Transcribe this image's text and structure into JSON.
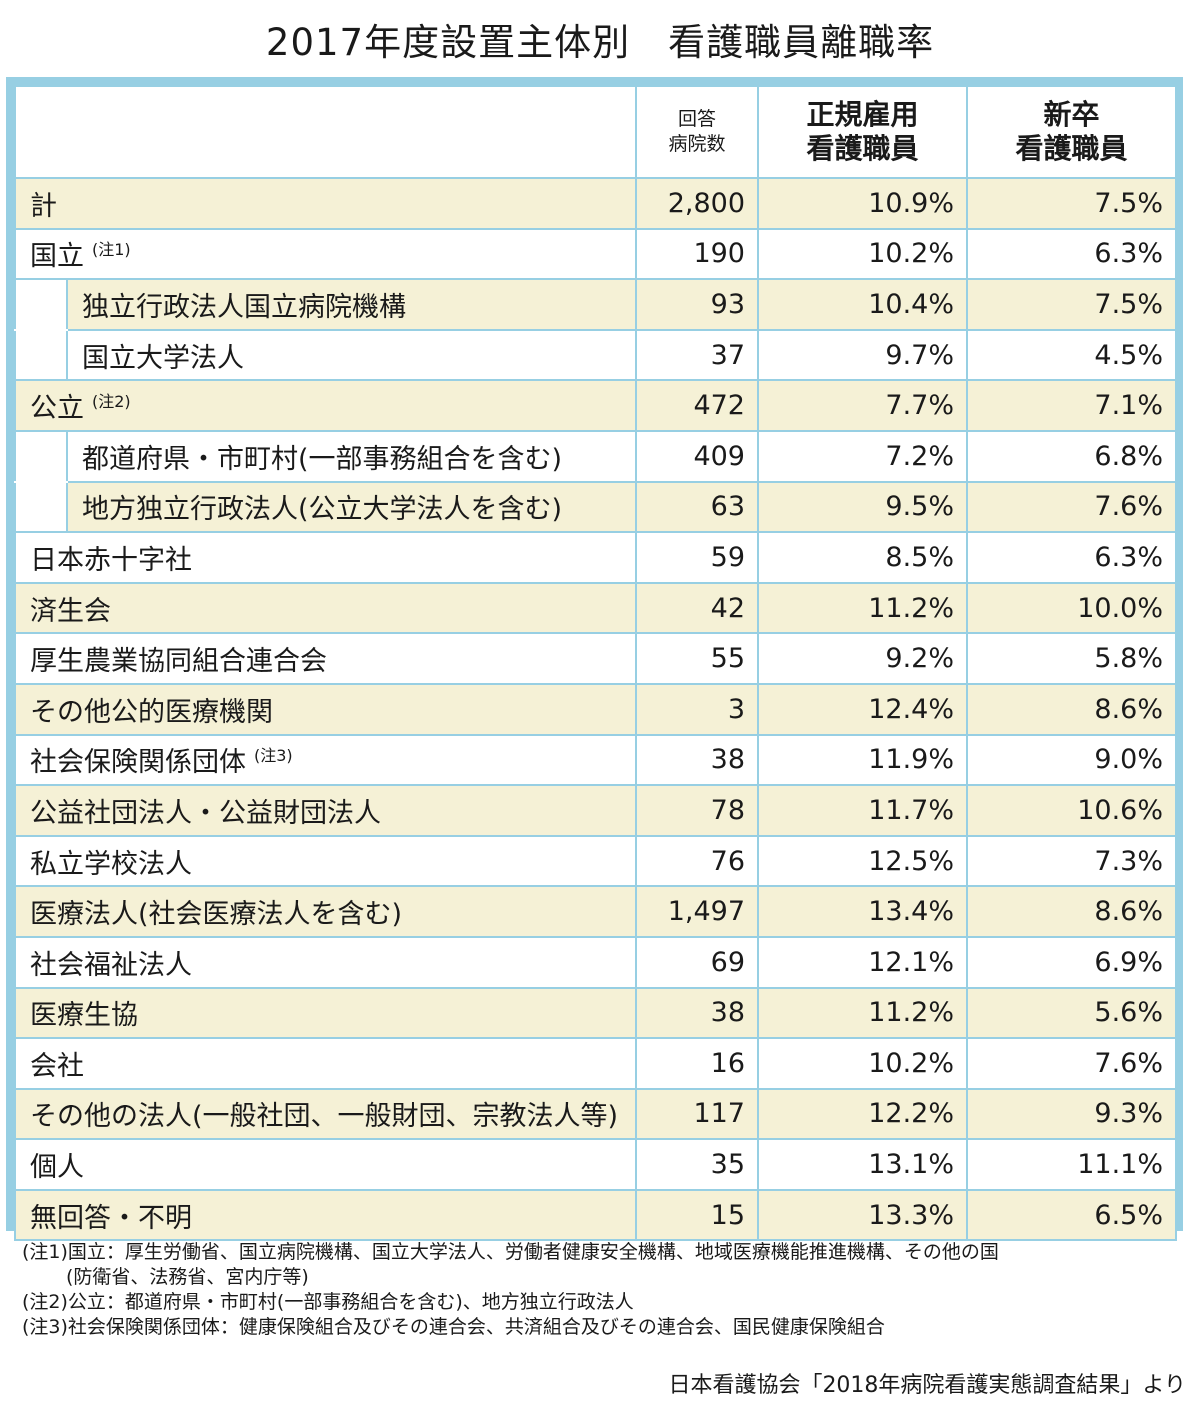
{
  "title": "2017年度設置主体別　看護職員離職率",
  "columns": {
    "count_line1": "回答",
    "count_line2": "病院数",
    "regular_line1": "正規雇用",
    "regular_line2": "看護職員",
    "newgrad_line1": "新卒",
    "newgrad_line2": "看護職員"
  },
  "rows": [
    {
      "label": "計",
      "note": "",
      "count": "2,800",
      "regular": "10.9%",
      "newgrad": "7.5%"
    },
    {
      "label": "国立",
      "note": "(注1)",
      "count": "190",
      "regular": "10.2%",
      "newgrad": "6.3%"
    },
    {
      "label": "独立行政法人国立病院機構",
      "note": "",
      "count": "93",
      "regular": "10.4%",
      "newgrad": "7.5%"
    },
    {
      "label": "国立大学法人",
      "note": "",
      "count": "37",
      "regular": "9.7%",
      "newgrad": "4.5%"
    },
    {
      "label": "公立",
      "note": "(注2)",
      "count": "472",
      "regular": "7.7%",
      "newgrad": "7.1%"
    },
    {
      "label": "都道府県・市町村(一部事務組合を含む)",
      "note": "",
      "count": "409",
      "regular": "7.2%",
      "newgrad": "6.8%"
    },
    {
      "label": "地方独立行政法人(公立大学法人を含む)",
      "note": "",
      "count": "63",
      "regular": "9.5%",
      "newgrad": "7.6%"
    },
    {
      "label": "日本赤十字社",
      "note": "",
      "count": "59",
      "regular": "8.5%",
      "newgrad": "6.3%"
    },
    {
      "label": "済生会",
      "note": "",
      "count": "42",
      "regular": "11.2%",
      "newgrad": "10.0%"
    },
    {
      "label": "厚生農業協同組合連合会",
      "note": "",
      "count": "55",
      "regular": "9.2%",
      "newgrad": "5.8%"
    },
    {
      "label": "その他公的医療機関",
      "note": "",
      "count": "3",
      "regular": "12.4%",
      "newgrad": "8.6%"
    },
    {
      "label": "社会保険関係団体",
      "note": "(注3)",
      "count": "38",
      "regular": "11.9%",
      "newgrad": "9.0%"
    },
    {
      "label": "公益社団法人・公益財団法人",
      "note": "",
      "count": "78",
      "regular": "11.7%",
      "newgrad": "10.6%"
    },
    {
      "label": "私立学校法人",
      "note": "",
      "count": "76",
      "regular": "12.5%",
      "newgrad": "7.3%"
    },
    {
      "label": "医療法人(社会医療法人を含む)",
      "note": "",
      "count": "1,497",
      "regular": "13.4%",
      "newgrad": "8.6%"
    },
    {
      "label": "社会福祉法人",
      "note": "",
      "count": "69",
      "regular": "12.1%",
      "newgrad": "6.9%"
    },
    {
      "label": "医療生協",
      "note": "",
      "count": "38",
      "regular": "11.2%",
      "newgrad": "5.6%"
    },
    {
      "label": "会社",
      "note": "",
      "count": "16",
      "regular": "10.2%",
      "newgrad": "7.6%"
    },
    {
      "label": "その他の法人(一般社団、一般財団、宗教法人等)",
      "note": "",
      "count": "117",
      "regular": "12.2%",
      "newgrad": "9.3%"
    },
    {
      "label": "個人",
      "note": "",
      "count": "35",
      "regular": "13.1%",
      "newgrad": "11.1%"
    },
    {
      "label": "無回答・不明",
      "note": "",
      "count": "15",
      "regular": "13.3%",
      "newgrad": "6.5%"
    }
  ],
  "notes": {
    "n1": "(注1)国立：厚生労働省、国立病院機構、国立大学法人、労働者健康安全機構、地域医療機能推進機構、その他の国",
    "n1_cont": "(防衛省、法務省、宮内庁等)",
    "n2": "(注2)公立：都道府県・市町村(一部事務組合を含む)、地方独立行政法人",
    "n3": "(注3)社会保険関係団体：健康保険組合及びその連合会、共済組合及びその連合会、国民健康保険組合"
  },
  "source": "日本看護協会「2018年病院看護実態調査結果」より"
}
